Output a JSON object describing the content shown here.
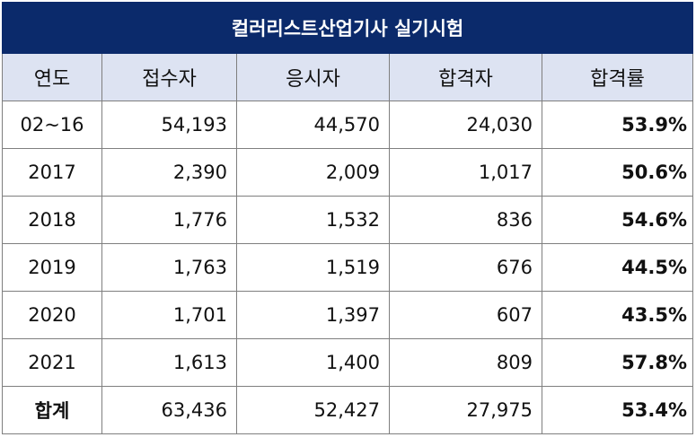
{
  "title": "컬러리스트산업기사 실기시험",
  "columns": [
    "연도",
    "접수자",
    "응시자",
    "합격자",
    "합격률"
  ],
  "rows": [
    {
      "year": "02~16",
      "applicants": "54,193",
      "examinees": "44,570",
      "passers": "24,030",
      "rate": "53.9%"
    },
    {
      "year": "2017",
      "applicants": "2,390",
      "examinees": "2,009",
      "passers": "1,017",
      "rate": "50.6%"
    },
    {
      "year": "2018",
      "applicants": "1,776",
      "examinees": "1,532",
      "passers": "836",
      "rate": "54.6%"
    },
    {
      "year": "2019",
      "applicants": "1,763",
      "examinees": "1,519",
      "passers": "676",
      "rate": "44.5%"
    },
    {
      "year": "2020",
      "applicants": "1,701",
      "examinees": "1,397",
      "passers": "607",
      "rate": "43.5%"
    },
    {
      "year": "2021",
      "applicants": "1,613",
      "examinees": "1,400",
      "passers": "809",
      "rate": "57.8%"
    },
    {
      "year": "합계",
      "applicants": "63,436",
      "examinees": "52,427",
      "passers": "27,975",
      "rate": "53.4%"
    }
  ],
  "colors": {
    "title_bg": "#0b2a6b",
    "header_bg": "#dde3f2",
    "border": "#7f7f7f"
  }
}
